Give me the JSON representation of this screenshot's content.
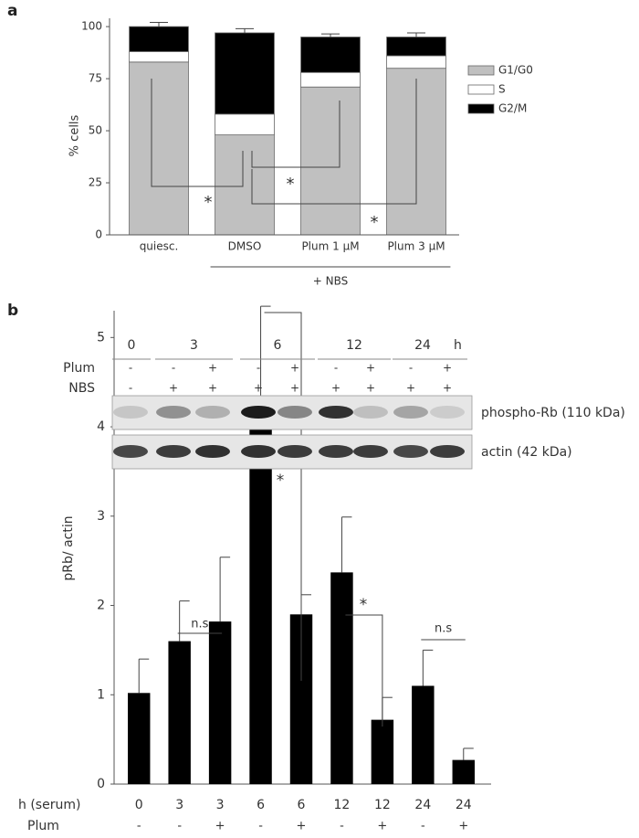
{
  "panel_labels": [
    "a",
    "b"
  ],
  "chart_data": [
    {
      "type": "stacked_bar",
      "ylabel": "% cells",
      "categories": [
        "quiesc.",
        "DMSO",
        "Plum 1 μM",
        "Plum 3 μM"
      ],
      "group_label": "+ NBS",
      "ylim": [
        0,
        104
      ],
      "yticks": [
        0,
        25,
        50,
        75,
        100
      ],
      "series": [
        {
          "name": "G1/G0",
          "color": "#c0c0c0",
          "values": [
            83,
            48,
            71,
            80
          ]
        },
        {
          "name": "S",
          "color": "#ffffff",
          "values": [
            5,
            10,
            7,
            6
          ]
        },
        {
          "name": "G2/M",
          "color": "#000000",
          "values": [
            12,
            39,
            17,
            9
          ],
          "errors": [
            2,
            2,
            1.5,
            2
          ]
        }
      ],
      "significance": [
        {
          "between": [
            0,
            1
          ],
          "label": "*"
        },
        {
          "between": [
            1,
            2
          ],
          "label": "*"
        },
        {
          "between": [
            1,
            3
          ],
          "label": "*"
        }
      ]
    },
    {
      "type": "bar",
      "ylabel": "pRb/ actin",
      "row_labels": [
        "h (serum)",
        "Plum"
      ],
      "categories": [
        "0",
        "3",
        "3",
        "6",
        "6",
        "12",
        "12",
        "24",
        "24"
      ],
      "plum": [
        "-",
        "-",
        "+",
        "-",
        "+",
        "-",
        "+",
        "-",
        "+"
      ],
      "values": [
        1.02,
        1.6,
        1.82,
        4.33,
        1.9,
        2.37,
        0.72,
        1.1,
        0.27
      ],
      "errors": [
        0.38,
        0.45,
        0.72,
        1.02,
        0.22,
        0.62,
        0.25,
        0.4,
        0.13
      ],
      "color": "#000000",
      "ylim": [
        0,
        5.3
      ],
      "yticks": [
        0,
        1,
        2,
        3,
        4,
        5
      ],
      "significance": [
        {
          "between": [
            1,
            2
          ],
          "label": "n.s"
        },
        {
          "between": [
            3,
            4
          ],
          "label": "*"
        },
        {
          "between": [
            5,
            6
          ],
          "label": "*"
        },
        {
          "between": [
            7,
            8
          ],
          "label": "n.s"
        }
      ]
    }
  ],
  "blot": {
    "time_points": [
      "0",
      "3",
      "6",
      "12",
      "24"
    ],
    "time_unit": "h",
    "rows": [
      {
        "label": "Plum",
        "values": [
          "-",
          "-",
          "+",
          "-",
          "+",
          "-",
          "+",
          "-",
          "+"
        ]
      },
      {
        "label": "NBS",
        "values": [
          "-",
          "+",
          "+",
          "+",
          "+",
          "+",
          "+",
          "+",
          "+"
        ]
      }
    ],
    "bands": [
      "phospho-Rb (110 kDa)",
      "actin (42 kDa)"
    ]
  }
}
